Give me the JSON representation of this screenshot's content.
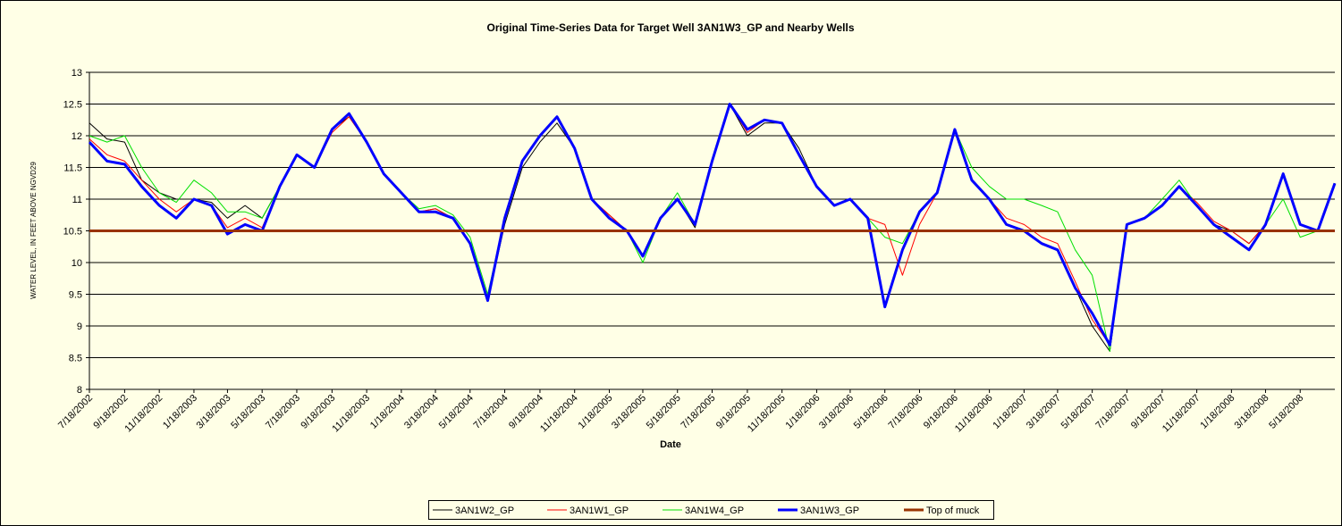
{
  "chart_data": {
    "type": "line",
    "title": "Original Time-Series Data for Target Well 3AN1W3_GP and Nearby Wells",
    "xlabel": "Date",
    "ylabel": "WATER LEVEL, IN FEET ABOVE NGVD29",
    "x": [
      "7/18/2002",
      "8/18/2002",
      "9/18/2002",
      "10/18/2002",
      "11/18/2002",
      "12/18/2002",
      "1/18/2003",
      "2/18/2003",
      "3/18/2003",
      "4/18/2003",
      "5/18/2003",
      "6/18/2003",
      "7/18/2003",
      "8/18/2003",
      "9/18/2003",
      "10/18/2003",
      "11/18/2003",
      "12/18/2003",
      "1/18/2004",
      "2/18/2004",
      "3/18/2004",
      "4/18/2004",
      "5/18/2004",
      "6/18/2004",
      "7/18/2004",
      "8/18/2004",
      "9/18/2004",
      "10/18/2004",
      "11/18/2004",
      "12/18/2004",
      "1/18/2005",
      "2/18/2005",
      "3/18/2005",
      "4/18/2005",
      "5/18/2005",
      "6/18/2005",
      "7/18/2005",
      "8/18/2005",
      "9/18/2005",
      "10/18/2005",
      "11/18/2005",
      "12/18/2005",
      "1/18/2006",
      "2/18/2006",
      "3/18/2006",
      "4/18/2006",
      "5/18/2006",
      "6/18/2006",
      "7/18/2006",
      "8/18/2006",
      "9/18/2006",
      "10/18/2006",
      "11/18/2006",
      "12/18/2006",
      "1/18/2007",
      "2/18/2007",
      "3/18/2007",
      "4/18/2007",
      "5/18/2007",
      "6/18/2007",
      "7/18/2007",
      "8/18/2007",
      "9/18/2007",
      "10/18/2007",
      "11/18/2007",
      "12/18/2007",
      "1/18/2008",
      "2/18/2008",
      "3/18/2008",
      "4/18/2008",
      "5/18/2008",
      "6/18/2008",
      "7/18/2008"
    ],
    "xlim": [
      "7/18/2002",
      "7/18/2008"
    ],
    "xticks": [
      "7/18/2002",
      "9/18/2002",
      "11/18/2002",
      "1/18/2003",
      "3/18/2003",
      "5/18/2003",
      "7/18/2003",
      "9/18/2003",
      "11/18/2003",
      "1/18/2004",
      "3/18/2004",
      "5/18/2004",
      "7/18/2004",
      "9/18/2004",
      "11/18/2004",
      "1/18/2005",
      "3/18/2005",
      "5/18/2005",
      "7/18/2005",
      "9/18/2005",
      "11/18/2005",
      "1/18/2006",
      "3/18/2006",
      "5/18/2006",
      "7/18/2006",
      "9/18/2006",
      "11/18/2006",
      "1/18/2007",
      "3/18/2007",
      "5/18/2007",
      "7/18/2007",
      "9/18/2007",
      "11/18/2007",
      "1/18/2008",
      "3/18/2008",
      "5/18/2008"
    ],
    "ylim": [
      8,
      13
    ],
    "yticks": [
      8,
      8.5,
      9,
      9.5,
      10,
      10.5,
      11,
      11.5,
      12,
      12.5,
      13
    ],
    "grid": true,
    "legend": "bottom",
    "series": [
      {
        "name": "3AN1W2_GP",
        "color": "#000000",
        "values": [
          12.2,
          11.95,
          11.9,
          11.3,
          11.1,
          11.0,
          11.0,
          10.95,
          10.7,
          10.9,
          10.7,
          11.2,
          11.7,
          11.5,
          12.1,
          12.3,
          11.9,
          11.4,
          11.1,
          10.8,
          10.85,
          10.7,
          10.3,
          9.4,
          10.6,
          11.5,
          11.9,
          12.2,
          11.8,
          11.0,
          10.75,
          10.5,
          10.1,
          10.7,
          11.0,
          10.55,
          11.6,
          12.5,
          12.0,
          12.2,
          12.2,
          11.8,
          11.2,
          10.9,
          11.0,
          10.7,
          9.3,
          10.2,
          10.8,
          11.1,
          12.1,
          11.3,
          11.0,
          10.6,
          10.5,
          10.3,
          10.2,
          9.6,
          9.0,
          8.6,
          10.6,
          10.7,
          10.9,
          11.2,
          10.9,
          10.6,
          10.5,
          10.3,
          10.6,
          11.4,
          10.6,
          10.5,
          11.25
        ]
      },
      {
        "name": "3AN1W1_GP",
        "color": "#ff0000",
        "values": [
          11.95,
          11.7,
          11.6,
          11.3,
          11.0,
          10.8,
          11.0,
          10.9,
          10.55,
          10.7,
          10.55,
          11.2,
          11.7,
          11.5,
          12.05,
          12.3,
          11.9,
          11.4,
          11.1,
          10.8,
          10.85,
          10.7,
          10.3,
          9.4,
          10.7,
          11.6,
          12.0,
          12.3,
          11.8,
          11.0,
          10.75,
          10.5,
          10.1,
          10.7,
          11.0,
          10.6,
          11.6,
          12.5,
          12.05,
          12.25,
          12.2,
          11.7,
          11.2,
          10.9,
          11.0,
          10.7,
          10.6,
          9.8,
          10.6,
          11.1,
          12.1,
          11.3,
          11.0,
          10.7,
          10.6,
          10.4,
          10.3,
          9.7,
          9.1,
          8.7,
          10.6,
          10.7,
          10.9,
          11.2,
          10.95,
          10.65,
          10.5,
          10.3,
          10.6,
          11.4,
          10.6,
          10.5,
          11.25
        ]
      },
      {
        "name": "3AN1W4_GP",
        "color": "#00e000",
        "values": [
          12.0,
          11.9,
          12.0,
          11.5,
          11.1,
          10.95,
          11.3,
          11.1,
          10.8,
          10.8,
          10.7,
          11.2,
          11.7,
          11.5,
          12.1,
          12.35,
          11.9,
          11.4,
          11.1,
          10.85,
          10.9,
          10.75,
          10.4,
          9.5,
          10.7,
          11.6,
          12.0,
          12.3,
          11.8,
          11.0,
          10.7,
          10.5,
          10.0,
          10.7,
          11.1,
          10.6,
          11.6,
          12.5,
          12.1,
          12.25,
          12.2,
          11.7,
          11.2,
          10.9,
          11.0,
          10.7,
          10.4,
          10.3,
          10.8,
          11.1,
          12.1,
          11.5,
          11.2,
          11.0,
          11.0,
          10.9,
          10.8,
          10.2,
          9.8,
          8.6,
          10.6,
          10.7,
          11.0,
          11.3,
          10.9,
          10.6,
          10.4,
          10.2,
          10.6,
          11.0,
          10.4,
          10.5,
          11.25
        ]
      },
      {
        "name": "3AN1W3_GP",
        "color": "#0000ff",
        "width": 3,
        "values": [
          11.9,
          11.6,
          11.55,
          11.2,
          10.9,
          10.7,
          11.0,
          10.9,
          10.45,
          10.6,
          10.5,
          11.2,
          11.7,
          11.5,
          12.1,
          12.35,
          11.9,
          11.4,
          11.1,
          10.8,
          10.8,
          10.7,
          10.3,
          9.4,
          10.7,
          11.6,
          12.0,
          12.3,
          11.8,
          11.0,
          10.7,
          10.5,
          10.1,
          10.7,
          11.0,
          10.6,
          11.6,
          12.5,
          12.1,
          12.25,
          12.2,
          11.7,
          11.2,
          10.9,
          11.0,
          10.7,
          9.3,
          10.2,
          10.8,
          11.1,
          12.1,
          11.3,
          11.0,
          10.6,
          10.5,
          10.3,
          10.2,
          9.6,
          9.2,
          8.7,
          10.6,
          10.7,
          10.9,
          11.2,
          10.9,
          10.6,
          10.4,
          10.2,
          10.6,
          11.4,
          10.6,
          10.5,
          11.25
        ]
      },
      {
        "name": "Top of muck",
        "color": "#993300",
        "width": 3,
        "values": [
          10.5,
          10.5,
          10.5,
          10.5,
          10.5,
          10.5,
          10.5,
          10.5,
          10.5,
          10.5,
          10.5,
          10.5,
          10.5,
          10.5,
          10.5,
          10.5,
          10.5,
          10.5,
          10.5,
          10.5,
          10.5,
          10.5,
          10.5,
          10.5,
          10.5,
          10.5,
          10.5,
          10.5,
          10.5,
          10.5,
          10.5,
          10.5,
          10.5,
          10.5,
          10.5,
          10.5,
          10.5,
          10.5,
          10.5,
          10.5,
          10.5,
          10.5,
          10.5,
          10.5,
          10.5,
          10.5,
          10.5,
          10.5,
          10.5,
          10.5,
          10.5,
          10.5,
          10.5,
          10.5,
          10.5,
          10.5,
          10.5,
          10.5,
          10.5,
          10.5,
          10.5,
          10.5,
          10.5,
          10.5,
          10.5,
          10.5,
          10.5,
          10.5,
          10.5,
          10.5,
          10.5,
          10.5,
          10.5
        ]
      }
    ]
  }
}
